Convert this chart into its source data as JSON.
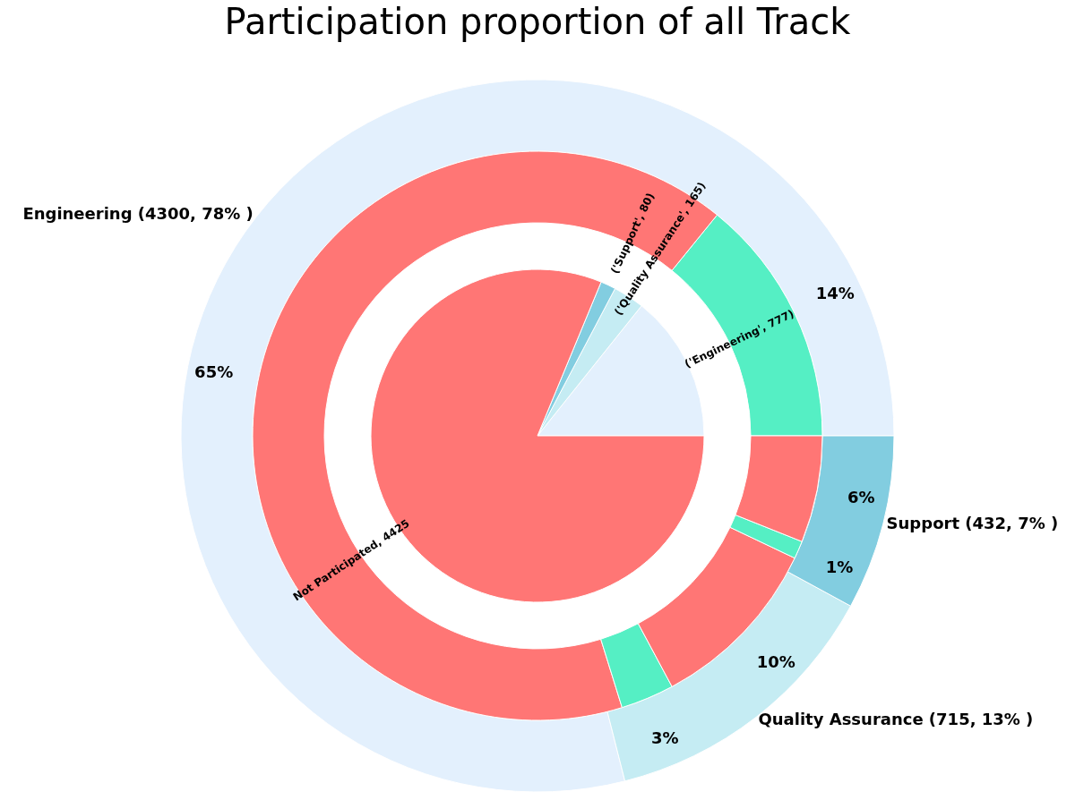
{
  "chart_data": [
    {
      "type": "pie",
      "title": "Participation proportion of all Track",
      "categories": [
        null,
        null,
        null,
        null
      ],
      "values": [
        777,
        165,
        80,
        4425
      ],
      "colors": [
        "#e3f0fd",
        "#c5ecf3",
        "#82cde0",
        "#ff7675"
      ],
      "value_labels": [
        "('Engineering', 777)",
        "('Quality Assurance', 165)",
        "('Support', 80)",
        "Not Participated, 4425"
      ]
    },
    {
      "type": "donut",
      "categories": [
        null,
        null,
        null,
        null,
        null,
        null
      ],
      "values": [
        14,
        65,
        3,
        10,
        1,
        6
      ],
      "colors": [
        "#55efc4",
        "#ff7675",
        "#55efc4",
        "#ff7675",
        "#55efc4",
        "#ff7675"
      ],
      "value_labels": [
        "14%",
        "65%",
        "3%",
        "10%",
        "1%",
        "6%"
      ]
    },
    {
      "type": "donut",
      "categories": [
        null,
        null,
        null
      ],
      "values": [
        4300,
        715,
        432
      ],
      "colors": [
        "#e3f0fd",
        "#c5ecf3",
        "#82cde0"
      ],
      "value_labels": [
        "Engineering (4300, 78% )",
        "Quality Assurance (715, 13% )",
        "Support (432, 7% )"
      ]
    }
  ]
}
